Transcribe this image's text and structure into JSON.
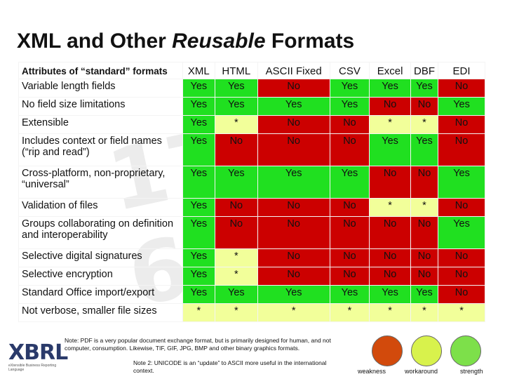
{
  "title_main": "XML and Other ",
  "title_italic": "Reusable",
  "title_end": " Formats",
  "header_label": "Attributes of “standard” formats",
  "columns": [
    "XML",
    "HTML",
    "ASCII Fixed",
    "CSV",
    "Excel",
    "DBF",
    "EDI"
  ],
  "rows": [
    {
      "label": "Variable length fields",
      "values": [
        "Yes",
        "Yes",
        "No",
        "Yes",
        "Yes",
        "Yes",
        "No"
      ]
    },
    {
      "label": "No field size limitations",
      "values": [
        "Yes",
        "Yes",
        "Yes",
        "Yes",
        "No",
        "No",
        "Yes"
      ]
    },
    {
      "label": "Extensible",
      "values": [
        "Yes",
        "*",
        "No",
        "No",
        "*",
        "*",
        "No"
      ]
    },
    {
      "label": "Includes context or field names (“rip and read”)",
      "values": [
        "Yes",
        "No",
        "No",
        "No",
        "Yes",
        "Yes",
        "No"
      ]
    },
    {
      "label": "Cross-platform, non-proprietary, “universal”",
      "values": [
        "Yes",
        "Yes",
        "Yes",
        "Yes",
        "No",
        "No",
        "Yes"
      ]
    },
    {
      "label": "Validation of files",
      "values": [
        "Yes",
        "No",
        "No",
        "No",
        "*",
        "*",
        "No"
      ]
    },
    {
      "label": "Groups collaborating on definition and interoperability",
      "values": [
        "Yes",
        "No",
        "No",
        "No",
        "No",
        "No",
        "Yes"
      ]
    },
    {
      "label": "Selective digital signatures",
      "values": [
        "Yes",
        "*",
        "No",
        "No",
        "No",
        "No",
        "No"
      ]
    },
    {
      "label": "Selective encryption",
      "values": [
        "Yes",
        "*",
        "No",
        "No",
        "No",
        "No",
        "No"
      ]
    },
    {
      "label": "Standard Office import/export",
      "values": [
        "Yes",
        "Yes",
        "Yes",
        "Yes",
        "Yes",
        "Yes",
        "No"
      ]
    },
    {
      "label": "Not verbose, smaller file sizes",
      "values": [
        "*",
        "*",
        "*",
        "*",
        "*",
        "*",
        "*"
      ]
    }
  ],
  "note1": "Note: PDF is a very popular document exchange format, but is primarily designed for human, and not computer, consumption. Likewise, TIF, GIF, JPG, BMP and other binary graphics formats.",
  "note2": "Note 2: UNICODE is an “update” to ASCII more useful in the international context.",
  "logo_text": "XBRL",
  "logo_sub": "eXtensible Business Reporting Language",
  "legend": [
    {
      "label": "weakness",
      "color": "#d24a0c"
    },
    {
      "label": "workaround",
      "color": "#d8f24c"
    },
    {
      "label": "strength",
      "color": "#7de04a"
    }
  ],
  "colors": {
    "yes": "#20e020",
    "no": "#cc0000",
    "star": "#f2ff9a"
  }
}
